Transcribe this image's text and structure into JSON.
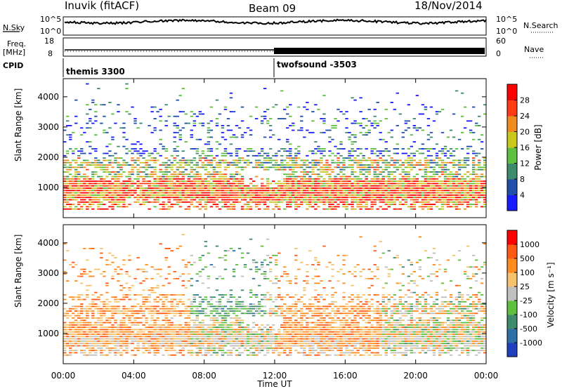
{
  "header": {
    "station": "Inuvik (fitACF)",
    "beam": "Beam 09",
    "date": "18/Nov/2014"
  },
  "top_panels": {
    "nsky_label": "N.Sky",
    "nsky_tick_top": "10^5",
    "nsky_tick_bottom": "10^0",
    "nsearch_label": "N.Search",
    "freq_label_1": "Freq.",
    "freq_label_2": "[MHz]",
    "freq_tick_top": "18",
    "freq_tick_bottom": "8",
    "nave_label": "Nave",
    "nave_tick_top": "60",
    "nave_tick_bottom": "0",
    "cpid_label": "CPID",
    "cpid_1": "themis 3300",
    "cpid_2": "twofsound -3503"
  },
  "chart_data": [
    {
      "type": "heatmap",
      "name": "power",
      "ylabel": "Slant Range [km]",
      "yticks": [
        "1000",
        "2000",
        "3000",
        "4000"
      ],
      "colorbar_label": "Power [dB]",
      "colorbar_ticks": [
        "4",
        "8",
        "12",
        "16",
        "20",
        "24",
        "28"
      ],
      "colors": [
        "#1a1aff",
        "#1f4fa8",
        "#3d8a6d",
        "#5fbf3f",
        "#c8c81e",
        "#f08c1e",
        "#ff3c14",
        "#ff0000"
      ]
    },
    {
      "type": "heatmap",
      "name": "velocity",
      "ylabel": "Slant Range [km]",
      "yticks": [
        "1000",
        "2000",
        "3000",
        "4000"
      ],
      "colorbar_label": "Velocity [m s⁻¹]",
      "colorbar_ticks": [
        "1000",
        "500",
        "100",
        "25",
        "-25",
        "-100",
        "-500",
        "-1000"
      ],
      "colors": [
        "#1f3fbf",
        "#2f6fa8",
        "#3d8a6d",
        "#5fbf3f",
        "#c0c0c0",
        "#f5c36e",
        "#ff8c1e",
        "#ff5a14",
        "#ff0000"
      ]
    }
  ],
  "x_axis": {
    "ticks": [
      "00:00",
      "04:00",
      "08:00",
      "12:00",
      "16:00",
      "20:00",
      "00:00"
    ],
    "label": "Time UT"
  }
}
